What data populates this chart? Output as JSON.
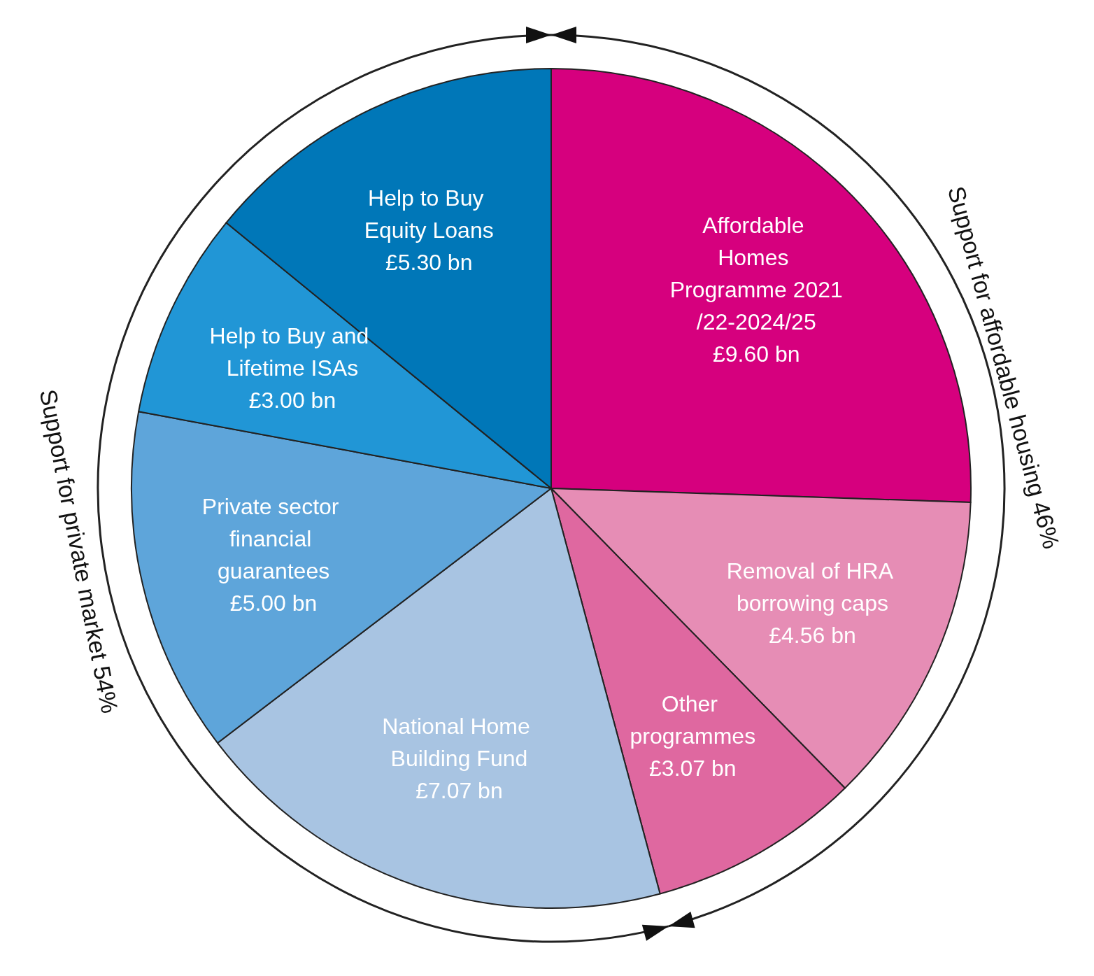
{
  "chart_data": {
    "type": "pie",
    "categories": [
      "Affordable Homes Programme 2021/22-2024/25",
      "Removal of HRA borrowing caps",
      "Other programmes",
      "National Home Building Fund",
      "Private sector financial guarantees",
      "Help to Buy and Lifetime ISAs",
      "Help to Buy Equity Loans"
    ],
    "values": [
      9.6,
      4.56,
      3.07,
      7.07,
      5.0,
      3.0,
      5.3
    ],
    "value_labels": [
      "£9.60 bn",
      "£4.56 bn",
      "£3.07 bn",
      "£7.07 bn",
      "£5.00 bn",
      "£3.00 bn",
      "£5.30 bn"
    ],
    "colors": [
      "#d6007e",
      "#e68db5",
      "#df68a0",
      "#a8c4e2",
      "#5ea5da",
      "#2196d6",
      "#0077b8"
    ],
    "annotations": [
      "Support for affordable housing 46%",
      "Support for private market 54%"
    ],
    "legend": false
  }
}
